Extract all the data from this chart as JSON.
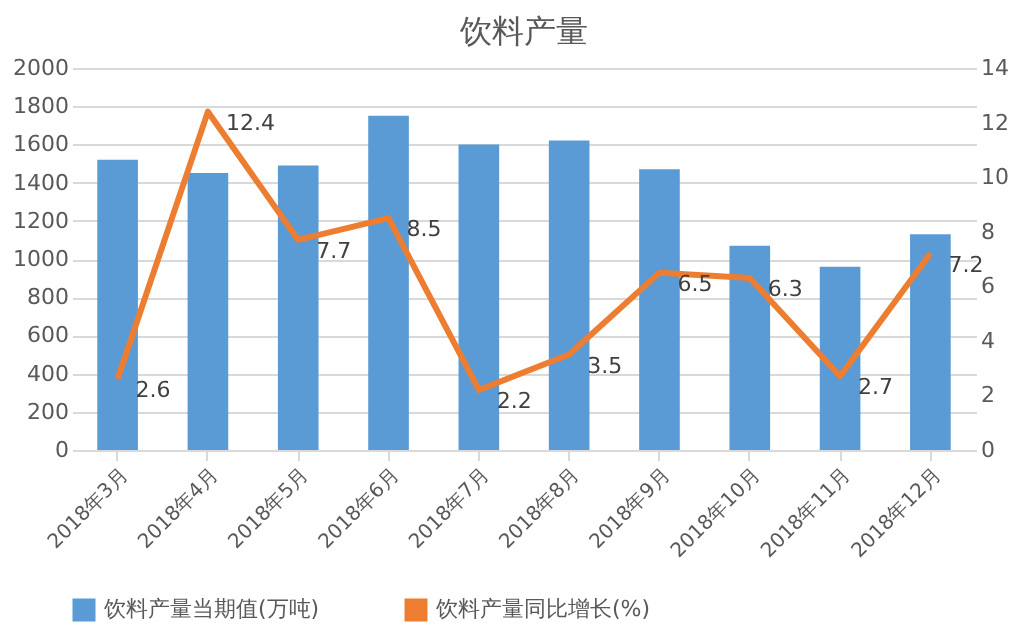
{
  "chart_data": {
    "type": "bar",
    "title": "饮料产量",
    "categories": [
      "2018年3月",
      "2018年4月",
      "2018年5月",
      "2018年6月",
      "2018年7月",
      "2018年8月",
      "2018年9月",
      "2018年10月",
      "2018年11月",
      "2018年12月"
    ],
    "series": [
      {
        "name": "饮料产量当期值(万吨)",
        "color": "#5b9bd5",
        "values": [
          1520,
          1450,
          1490,
          1750,
          1600,
          1620,
          1470,
          1070,
          960,
          1130
        ]
      },
      {
        "name": "饮料产量同比增长(%)",
        "type": "line",
        "axis": "y2",
        "color": "#ed7d31",
        "values": [
          2.6,
          12.4,
          7.7,
          8.5,
          2.2,
          3.5,
          6.5,
          6.3,
          2.7,
          7.2
        ],
        "value_labels": [
          "2.6",
          "12.4",
          "7.7",
          "8.5",
          "2.2",
          "3.5",
          "6.5",
          "6.3",
          "2.7",
          "7.2"
        ]
      }
    ],
    "ylim": [
      0,
      2000
    ],
    "yticks": [
      0,
      200,
      400,
      600,
      800,
      1000,
      1200,
      1400,
      1600,
      1800,
      2000
    ],
    "y2lim": [
      0,
      14
    ],
    "y2ticks": [
      0,
      2,
      4,
      6,
      8,
      10,
      12,
      14
    ],
    "grid": "y",
    "legend": "bottom"
  }
}
